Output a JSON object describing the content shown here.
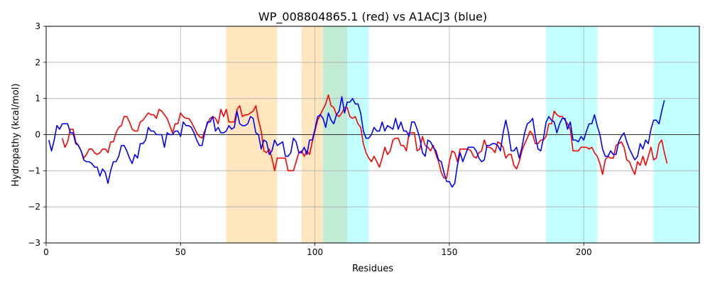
{
  "chart_data": {
    "type": "line",
    "title": "WP_008804865.1 (red) vs A1ACJ3 (blue)",
    "xlabel": "Residues",
    "ylabel": "Hydropathy (kcal/mol)",
    "xlim": [
      0,
      243
    ],
    "ylim": [
      -3,
      3
    ],
    "xticks": [
      0,
      50,
      100,
      150,
      200
    ],
    "yticks": [
      -3,
      -2,
      -1,
      0,
      1,
      2,
      3
    ],
    "grid": true,
    "zero_line": true,
    "legend": "none",
    "regions": [
      {
        "start": 67,
        "end": 86,
        "color": "#ffe6bf"
      },
      {
        "start": 95,
        "end": 103,
        "color": "#ffe6bf"
      },
      {
        "start": 103,
        "end": 112,
        "color": "#c2ebd6"
      },
      {
        "start": 112,
        "end": 120,
        "color": "#c2ffff"
      },
      {
        "start": 186,
        "end": 205,
        "color": "#c2ffff"
      },
      {
        "start": 226,
        "end": 243,
        "color": "#c2ffff"
      }
    ],
    "series": [
      {
        "color": "#ff0000",
        "x_start": 6,
        "values": [
          -0.1,
          -0.35,
          -0.2,
          0.15,
          0.15,
          -0.2,
          -0.3,
          -0.45,
          -0.65,
          -0.55,
          -0.4,
          -0.4,
          -0.5,
          -0.55,
          -0.5,
          -0.4,
          -0.4,
          -0.5,
          -0.2,
          -0.2,
          0.05,
          0.2,
          0.25,
          0.5,
          0.5,
          0.35,
          0.15,
          0.1,
          0.1,
          0.35,
          0.4,
          0.5,
          0.6,
          0.55,
          0.55,
          0.45,
          0.7,
          0.65,
          0.55,
          0.45,
          0.25,
          0.05,
          0.3,
          0.3,
          0.6,
          0.5,
          0.45,
          0.45,
          0.35,
          0.2,
          0.05,
          -0.05,
          -0.1,
          0.1,
          0.3,
          0.45,
          0.5,
          0.45,
          0.3,
          0.7,
          0.5,
          0.7,
          0.35,
          0.35,
          0.35,
          0.7,
          0.8,
          0.5,
          0.55,
          0.55,
          0.6,
          0.65,
          0.8,
          0.4,
          0.1,
          -0.45,
          -0.5,
          -0.4,
          -0.65,
          -1.0,
          -0.65,
          -0.65,
          -0.65,
          -0.65,
          -1.0,
          -1.0,
          -1.0,
          -0.75,
          -0.5,
          -0.45,
          -0.6,
          -0.45,
          -0.55,
          -0.2,
          0.1,
          0.4,
          0.55,
          0.7,
          0.85,
          1.1,
          0.8,
          0.75,
          0.55,
          0.5,
          0.6,
          0.75,
          0.75,
          0.5,
          0.45,
          0.5,
          0.3,
          0.2,
          -0.25,
          -0.5,
          -0.65,
          -0.75,
          -0.6,
          -0.75,
          -0.9,
          -0.65,
          -0.35,
          -0.55,
          -0.45,
          -0.15,
          -0.1,
          -0.1,
          -0.3,
          -0.3,
          -0.45,
          0.05,
          0.05,
          0.05,
          -0.45,
          -0.4,
          -0.05,
          -0.3,
          -0.35,
          -0.45,
          -0.3,
          -0.55,
          -0.75,
          -1.05,
          -1.2,
          -1.2,
          -0.75,
          -0.45,
          -0.5,
          -0.75,
          -0.4,
          -0.4,
          -0.4,
          -0.4,
          -0.45,
          -0.6,
          -0.65,
          -0.5,
          -0.45,
          -0.15,
          -0.35,
          -0.35,
          -0.4,
          -0.5,
          -0.2,
          -0.25,
          -0.35,
          -0.65,
          -0.55,
          -0.55,
          -0.85,
          -0.95,
          -0.75,
          -0.45,
          -0.25,
          -0.1,
          0.1,
          0.0,
          -0.25,
          -0.25,
          -0.15,
          -0.15,
          -0.05,
          0.3,
          0.3,
          0.65,
          0.55,
          0.5,
          0.5,
          0.4,
          0.3,
          0.15,
          -0.45,
          -0.45,
          -0.45,
          -0.35,
          -0.35,
          -0.35,
          -0.4,
          -0.35,
          -0.5,
          -0.6,
          -0.8,
          -1.1,
          -0.7,
          -0.6,
          -0.65,
          -0.65,
          -0.3,
          -0.25,
          -0.2,
          -0.35,
          -0.7,
          -0.75,
          -0.95,
          -1.1,
          -0.75,
          -0.85,
          -0.6,
          -0.85,
          -0.6,
          -0.35,
          -0.7,
          -0.65,
          -0.25,
          -0.15,
          -0.5,
          -0.8
        ]
      },
      {
        "color": "#0000ff",
        "x_start": 1,
        "values": [
          -0.15,
          -0.45,
          -0.15,
          0.25,
          0.15,
          0.3,
          0.3,
          0.3,
          0.05,
          0.05,
          -0.25,
          -0.3,
          -0.45,
          -0.7,
          -0.75,
          -0.75,
          -0.8,
          -0.9,
          -0.9,
          -1.15,
          -0.95,
          -1.05,
          -1.35,
          -1.0,
          -0.75,
          -0.75,
          -0.6,
          -0.3,
          -0.3,
          -0.45,
          -0.65,
          -0.8,
          -0.55,
          -0.65,
          -0.25,
          -0.25,
          -0.15,
          0.2,
          0.1,
          0.1,
          0.0,
          0.0,
          0.0,
          -0.35,
          0.05,
          0.0,
          0.0,
          0.1,
          0.1,
          -0.05,
          0.35,
          0.25,
          0.25,
          0.2,
          0.05,
          -0.15,
          -0.3,
          -0.3,
          0.05,
          0.35,
          0.35,
          0.5,
          0.1,
          0.2,
          0.05,
          0.05,
          0.1,
          0.25,
          0.15,
          0.2,
          0.65,
          0.3,
          0.25,
          0.25,
          0.3,
          0.5,
          0.45,
          0.05,
          0.0,
          -0.4,
          -0.15,
          -0.2,
          -0.55,
          -0.45,
          -0.15,
          -0.3,
          -0.25,
          -0.2,
          -0.6,
          -0.6,
          -0.5,
          -0.1,
          -0.2,
          -0.5,
          -0.5,
          -0.35,
          -0.55,
          -0.15,
          -0.15,
          0.15,
          0.5,
          0.55,
          0.45,
          0.2,
          0.6,
          0.4,
          0.3,
          0.55,
          0.65,
          1.05,
          0.6,
          0.9,
          0.9,
          1.0,
          0.85,
          0.85,
          0.6,
          0.1,
          -0.1,
          -0.1,
          0.0,
          0.2,
          0.1,
          0.1,
          0.35,
          0.1,
          0.25,
          0.2,
          0.15,
          0.45,
          0.15,
          0.35,
          0.1,
          0.1,
          -0.05,
          0.35,
          0.35,
          0.15,
          -0.1,
          -0.5,
          -0.6,
          -0.15,
          -0.2,
          -0.35,
          -0.45,
          -0.7,
          -0.75,
          -1.05,
          -1.3,
          -1.3,
          -1.45,
          -1.35,
          -0.85,
          -0.5,
          -0.75,
          -0.55,
          -0.35,
          -0.35,
          -0.35,
          -0.45,
          -0.65,
          -0.75,
          -0.7,
          -0.3,
          -0.3,
          -0.25,
          -0.25,
          -0.3,
          -0.45,
          0.05,
          0.4,
          0.05,
          -0.45,
          -0.45,
          -0.35,
          -0.65,
          -0.35,
          0.05,
          0.3,
          0.35,
          0.45,
          -0.05,
          -0.4,
          -0.45,
          -0.1,
          0.35,
          0.5,
          0.4,
          0.35,
          0.05,
          0.3,
          0.45,
          0.45,
          0.15,
          0.35,
          -0.15,
          -0.15,
          -0.2,
          -0.05,
          -0.15,
          0.1,
          0.3,
          0.3,
          0.55,
          0.25,
          0.0,
          -0.4,
          -0.6,
          -0.6,
          -0.45,
          -0.55,
          -0.55,
          -0.2,
          -0.05,
          0.05,
          -0.2,
          -0.4,
          -0.55,
          -0.7,
          -0.6,
          -0.25,
          -0.4,
          -0.15,
          -0.25,
          0.15,
          0.4,
          0.4,
          0.3,
          0.65,
          0.95
        ]
      }
    ]
  }
}
